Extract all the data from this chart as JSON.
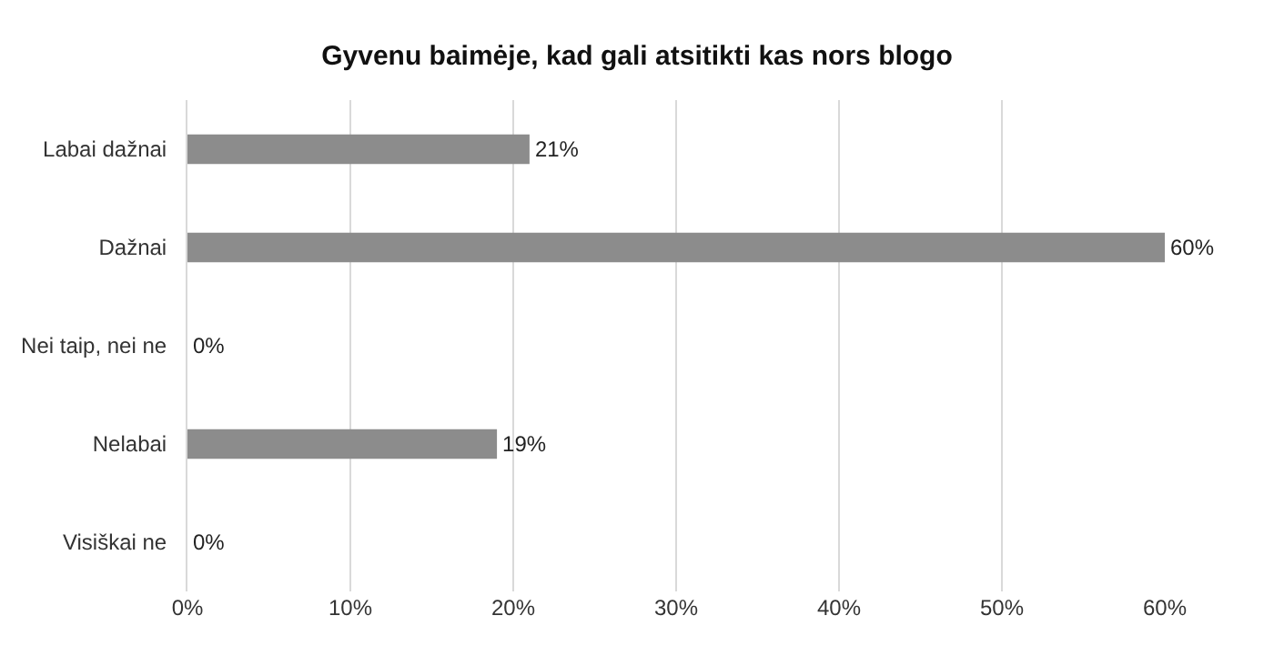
{
  "chart_data": {
    "type": "bar",
    "orientation": "horizontal",
    "title": "Gyvenu baimėje, kad gali atsitikti kas nors blogo",
    "categories": [
      "Labai dažnai",
      "Dažnai",
      "Nei taip, nei ne",
      "Nelabai",
      "Visiškai ne"
    ],
    "values": [
      21,
      60,
      0,
      19,
      0
    ],
    "value_labels": [
      "21%",
      "60%",
      "0%",
      "19%",
      "0%"
    ],
    "color": "#8c8c8c",
    "xlim": [
      0,
      60
    ],
    "xticks": [
      {
        "value": 0,
        "label": "0%"
      },
      {
        "value": 10,
        "label": "10%"
      },
      {
        "value": 20,
        "label": "20%"
      },
      {
        "value": 30,
        "label": "30%"
      },
      {
        "value": 40,
        "label": "40%"
      },
      {
        "value": 50,
        "label": "50%"
      },
      {
        "value": 60,
        "label": "60%"
      }
    ],
    "grid": "x"
  }
}
